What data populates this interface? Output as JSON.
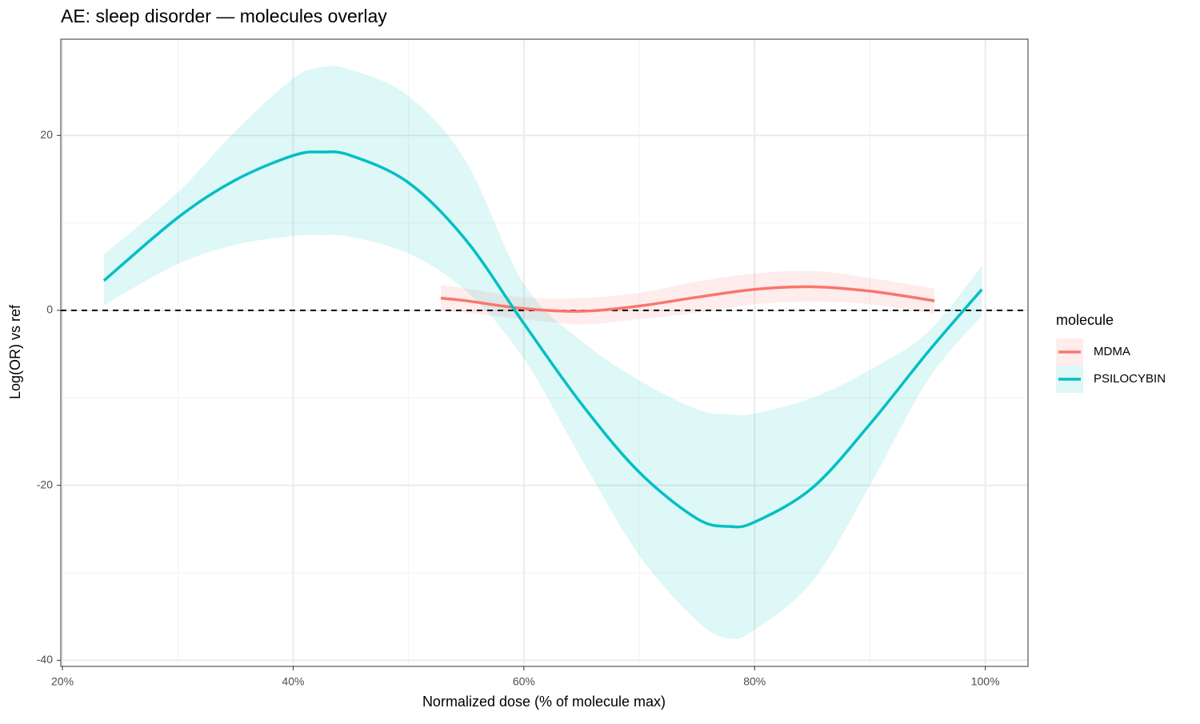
{
  "chart_data": {
    "type": "line",
    "title": "AE: sleep disorder — molecules overlay",
    "x_label": "Normalized dose (% of molecule max)",
    "y_label": "Log(OR) vs ref",
    "legend_title": "molecule",
    "legend": "right",
    "grid": true,
    "hline": 0,
    "xlim": [
      19.86,
      103.7
    ],
    "ylim": [
      -40.7,
      31.0
    ],
    "xticks": [
      {
        "value": 20,
        "label": "20%"
      },
      {
        "value": 40,
        "label": "40%"
      },
      {
        "value": 60,
        "label": "60%"
      },
      {
        "value": 80,
        "label": "80%"
      },
      {
        "value": 100,
        "label": "100%"
      }
    ],
    "yticks": [
      -40,
      -20,
      0,
      20
    ],
    "x_minor_breaks": [
      30,
      50,
      70,
      90
    ],
    "y_minor_breaks": [
      -30,
      -10,
      10
    ],
    "series": [
      {
        "name": "MDMA",
        "color": "#F8766D",
        "x": [
          52.8,
          55,
          60,
          65,
          70,
          75,
          80,
          85,
          90,
          95.6
        ],
        "values": [
          1.4,
          1.1,
          0.2,
          -0.1,
          0.5,
          1.5,
          2.4,
          2.7,
          2.2,
          1.1
        ],
        "upper": [
          2.9,
          2.5,
          1.5,
          1.4,
          2.0,
          3.3,
          4.2,
          4.5,
          3.7,
          2.5
        ],
        "lower": [
          0.0,
          -0.3,
          -1.0,
          -1.6,
          -1.0,
          -0.3,
          0.7,
          1.0,
          0.7,
          -0.4
        ]
      },
      {
        "name": "PSILOCYBIN",
        "color": "#00BFC4",
        "x": [
          23.6,
          30,
          35,
          40,
          42.5,
          45,
          50,
          55,
          60,
          65,
          70,
          75,
          77.8,
          80,
          85,
          90,
          95,
          99.7
        ],
        "values": [
          3.4,
          10.6,
          14.9,
          17.7,
          18.1,
          17.7,
          14.6,
          8.0,
          -1.5,
          -10.7,
          -18.5,
          -23.8,
          -24.7,
          -24.2,
          -20.3,
          -13.0,
          -4.8,
          2.4
        ],
        "upper": [
          6.4,
          13.5,
          20.5,
          26.5,
          27.8,
          27.5,
          24.5,
          17.0,
          3.0,
          -3.5,
          -8.0,
          -11.3,
          -11.9,
          -11.8,
          -10.0,
          -6.8,
          -2.5,
          5.1
        ],
        "lower": [
          0.6,
          5.3,
          7.5,
          8.5,
          8.6,
          8.4,
          6.5,
          2.2,
          -5.5,
          -17.0,
          -28.0,
          -35.5,
          -37.5,
          -36.5,
          -31.0,
          -20.0,
          -8.0,
          -0.6
        ]
      }
    ]
  }
}
